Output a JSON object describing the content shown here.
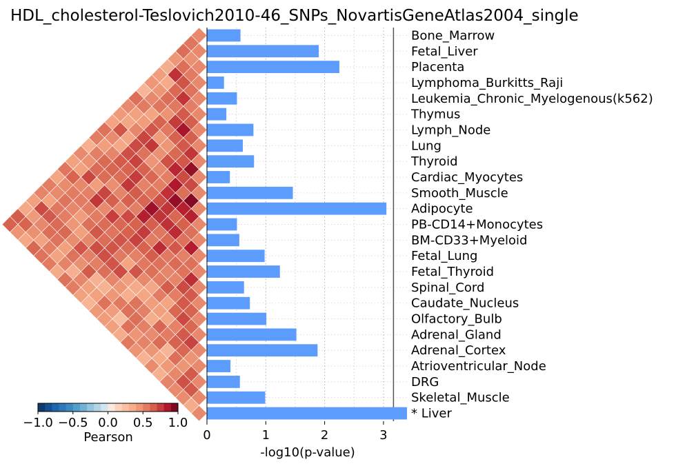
{
  "chart_data": {
    "type": "bar",
    "orientation": "horizontal",
    "title": "HDL_cholesterol-Teslovich2010-46_SNPs_NovartisGeneAtlas2004_single",
    "xlabel": "-log10(p-value)",
    "xlim": [
      0,
      3.4
    ],
    "x_ticks": [
      "0",
      "1",
      "2",
      "3"
    ],
    "threshold": 3.17,
    "grid": "x dotted",
    "bar_color": "#5b9cfd",
    "categories": [
      "Bone_Marrow",
      "Fetal_Liver",
      "Placenta",
      "Lymphoma_Burkitts_Raji",
      "Leukemia_Chronic_Myelogenous(k562)",
      "Thymus",
      "Lymph_Node",
      "Lung",
      "Thyroid",
      "Cardiac_Myocytes",
      "Smooth_Muscle",
      "Adipocyte",
      "PB-CD14+Monocytes",
      "BM-CD33+Myeloid",
      "Fetal_Lung",
      "Fetal_Thyroid",
      "Spinal_Cord",
      "Caudate_Nucleus",
      "Olfactory_Bulb",
      "Adrenal_Gland",
      "Adrenal_Cortex",
      "Atrioventricular_Node",
      "DRG",
      "Skeletal_Muscle",
      "* Liver"
    ],
    "values": [
      0.57,
      1.9,
      2.25,
      0.29,
      0.51,
      0.33,
      0.79,
      0.61,
      0.8,
      0.39,
      1.46,
      3.05,
      0.51,
      0.55,
      0.98,
      1.24,
      0.63,
      0.73,
      1.01,
      1.52,
      1.88,
      0.4,
      0.56,
      0.99,
      3.4
    ],
    "heatmap": {
      "type": "heatmap",
      "layout": "triangle",
      "colormap": "RdBu_r",
      "colorbar_label": "Pearson",
      "colorbar_range": [
        -1.0,
        1.0
      ],
      "colorbar_ticks": [
        "−1.0",
        "−0.5",
        "0.0",
        "0.5",
        "1.0"
      ]
    }
  }
}
